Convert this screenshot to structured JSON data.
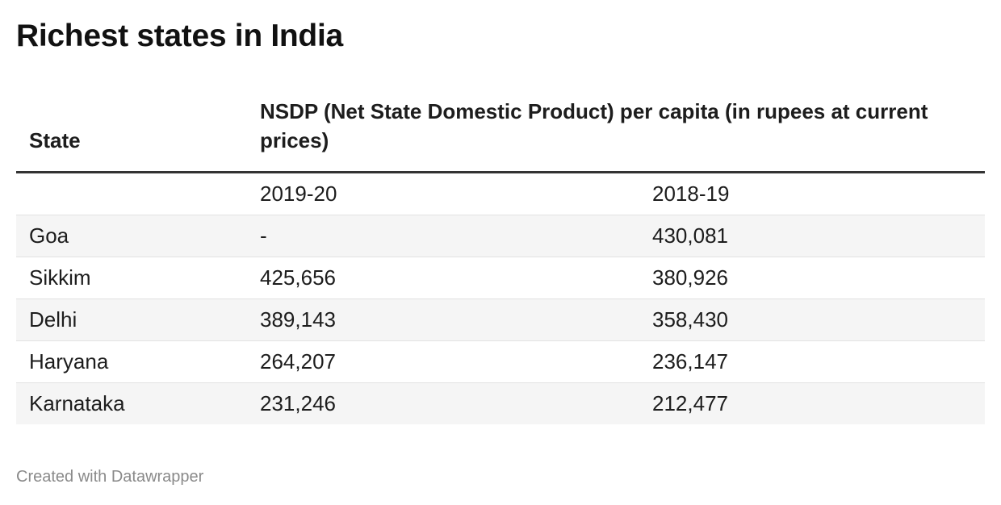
{
  "title": "Richest states in India",
  "footer": "Created with Datawrapper",
  "chart_data": {
    "type": "table",
    "title": "Richest states in India",
    "columns": [
      "State",
      "NSDP (Net State Domestic Product) per capita (in rupees at current prices)"
    ],
    "subheader": [
      "",
      "2019-20",
      "2018-19"
    ],
    "rows": [
      {
        "state": "Goa",
        "v2019_20": "-",
        "v2018_19": "430,081"
      },
      {
        "state": "Sikkim",
        "v2019_20": "425,656",
        "v2018_19": "380,926"
      },
      {
        "state": "Delhi",
        "v2019_20": "389,143",
        "v2018_19": "358,430"
      },
      {
        "state": "Haryana",
        "v2019_20": "264,207",
        "v2018_19": "236,147"
      },
      {
        "state": "Karnataka",
        "v2019_20": "231,246",
        "v2018_19": "212,477"
      }
    ],
    "shading": {
      "alternate_row_color": "#f5f5f5"
    }
  }
}
